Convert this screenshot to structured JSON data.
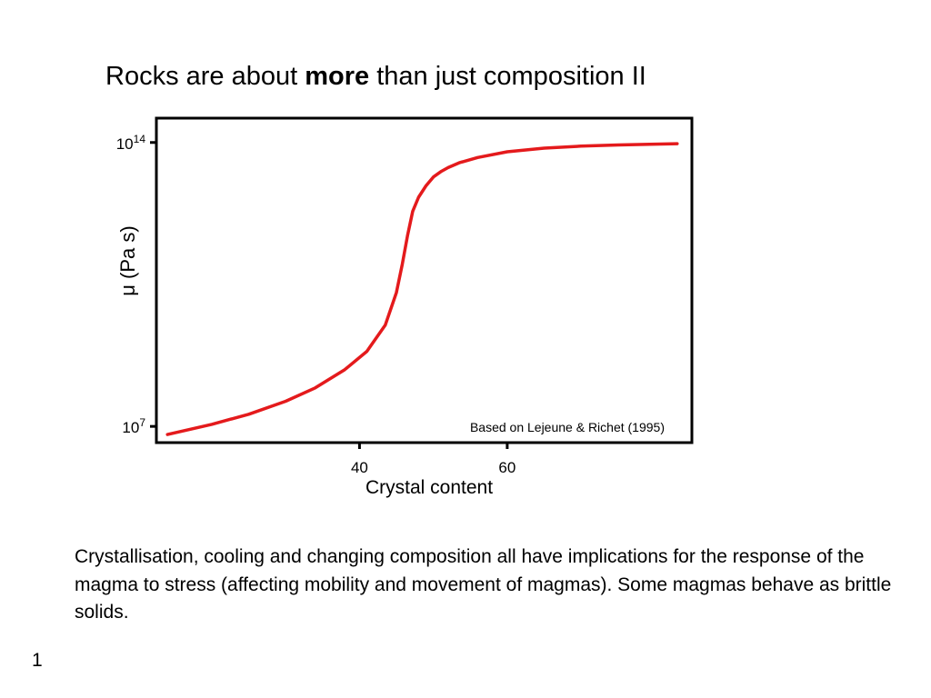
{
  "slide": {
    "title_before": "Rocks are about ",
    "title_bold": "more",
    "title_after": " than just composition II",
    "body": "Crystallisation, cooling and changing composition all have implications for the response of the magma to stress (affecting mobility and movement of magmas). Some magmas behave as brittle solids.",
    "slide_number": "1"
  },
  "chart_data": {
    "type": "line",
    "xlabel": "Crystal content",
    "ylabel": "μ (Pa s)",
    "annotation": "Based on Lejeune & Richet (1995)",
    "x_ticks": [
      40,
      60
    ],
    "y_ticks": [
      {
        "base": "10",
        "exp": "7",
        "value": 7
      },
      {
        "base": "10",
        "exp": "14",
        "value": 14
      }
    ],
    "xlim": [
      12.5,
      85
    ],
    "ylim": [
      6.6,
      14.6
    ],
    "y_scale": "log10",
    "grid": false,
    "series": [
      {
        "color": "#e41a1c",
        "x": [
          14,
          20,
          25,
          30,
          34,
          38,
          41,
          43.5,
          45,
          45.8,
          46.5,
          47.2,
          48,
          49,
          50,
          51,
          52,
          53.5,
          56,
          60,
          65,
          70,
          75,
          80,
          83
        ],
        "y": [
          6.8,
          7.05,
          7.3,
          7.62,
          7.95,
          8.4,
          8.85,
          9.5,
          10.3,
          11.0,
          11.7,
          12.3,
          12.65,
          12.93,
          13.15,
          13.28,
          13.38,
          13.5,
          13.63,
          13.77,
          13.86,
          13.91,
          13.94,
          13.96,
          13.97
        ]
      }
    ]
  }
}
